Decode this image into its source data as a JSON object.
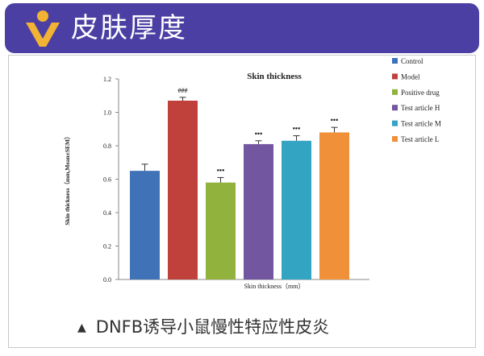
{
  "header": {
    "title": "皮肤厚度"
  },
  "caption": {
    "marker": "▲",
    "text": "DNFB诱导小鼠慢性特应性皮炎"
  },
  "colors": {
    "banner": "#4b3fa3",
    "logo": "#f2b233"
  },
  "chart_data": {
    "type": "bar",
    "title": "Skin thickness",
    "xlabel": "Skin thickness（mm）",
    "ylabel": "Skin thickness（mm,Mean±SEM）",
    "ylim": [
      0,
      1.2
    ],
    "yticks": [
      "0.0",
      "0.2",
      "0.4",
      "0.6",
      "0.8",
      "1.0",
      "1.2"
    ],
    "legend_position": "right",
    "grid": false,
    "series": [
      {
        "name": "Control",
        "value": 0.65,
        "error": 0.04,
        "sig": "",
        "color": "#3f72b6"
      },
      {
        "name": "Model",
        "value": 1.07,
        "error": 0.02,
        "sig": "###",
        "color": "#c0413b"
      },
      {
        "name": "Positive drug",
        "value": 0.58,
        "error": 0.03,
        "sig": "•••",
        "color": "#92b23e"
      },
      {
        "name": "Test article H",
        "value": 0.81,
        "error": 0.02,
        "sig": "•••",
        "color": "#7256a0"
      },
      {
        "name": "Test article M",
        "value": 0.83,
        "error": 0.03,
        "sig": "•••",
        "color": "#33a4c2"
      },
      {
        "name": "Test article L",
        "value": 0.88,
        "error": 0.03,
        "sig": "•••",
        "color": "#f0913a"
      }
    ]
  }
}
